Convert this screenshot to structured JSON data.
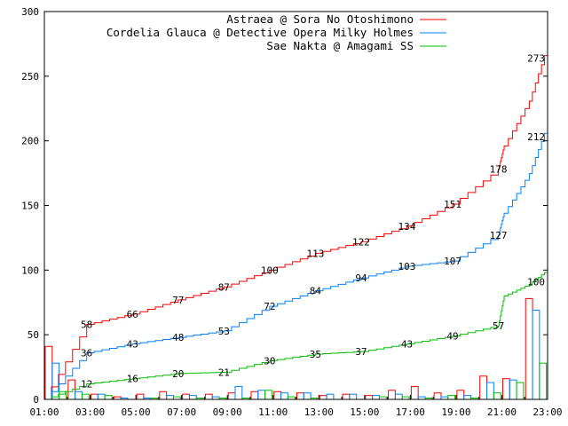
{
  "chart_data": {
    "type": "line",
    "title": "",
    "xlabel": "",
    "ylabel": "",
    "ylim": [
      0,
      300
    ],
    "xlim_hours": [
      1,
      23
    ],
    "yticks": [
      0,
      50,
      100,
      150,
      200,
      250,
      300
    ],
    "xticks": [
      "01:00",
      "03:00",
      "05:00",
      "07:00",
      "09:00",
      "11:00",
      "13:00",
      "15:00",
      "17:00",
      "19:00",
      "21:00",
      "23:00"
    ],
    "grid": false,
    "legend_position": "top-right",
    "label_hours": [
      2.85,
      4.85,
      6.85,
      8.85,
      10.85,
      12.85,
      14.85,
      16.85,
      18.85,
      20.85
    ],
    "series": [
      {
        "name": "Astraea @ Sora No Otoshimono",
        "color": "#ff0000",
        "cumulative_labels": [
          58,
          66,
          77,
          87,
          100,
          113,
          122,
          134,
          151,
          178
        ],
        "late_value": 196,
        "final": 273,
        "hourly": [
          41,
          15,
          4,
          2,
          4,
          6,
          4,
          4,
          5,
          6,
          6,
          5,
          3,
          4,
          3,
          7,
          10,
          5,
          7,
          18,
          16,
          78
        ]
      },
      {
        "name": "Cordelia Glauca @ Detective Opera Milky Holmes",
        "color": "#0080ff",
        "cumulative_labels": [
          36,
          43,
          48,
          53,
          72,
          84,
          94,
          103,
          107,
          127
        ],
        "late_value": 144,
        "final": 212,
        "hourly": [
          28,
          6,
          4,
          1,
          1,
          3,
          3,
          2,
          10,
          7,
          5,
          5,
          4,
          4,
          3,
          4,
          2,
          2,
          3,
          13,
          15,
          69
        ]
      },
      {
        "name": "Sae Nakta @ Amagami SS",
        "color": "#00c000",
        "cumulative_labels": [
          12,
          16,
          20,
          21,
          30,
          35,
          37,
          43,
          49,
          57
        ],
        "late_value": 80,
        "final": 100,
        "hourly": [
          6,
          4,
          3,
          0,
          1,
          2,
          1,
          1,
          1,
          7,
          2,
          1,
          0,
          0,
          2,
          2,
          1,
          3,
          1,
          5,
          13,
          28
        ]
      }
    ]
  }
}
